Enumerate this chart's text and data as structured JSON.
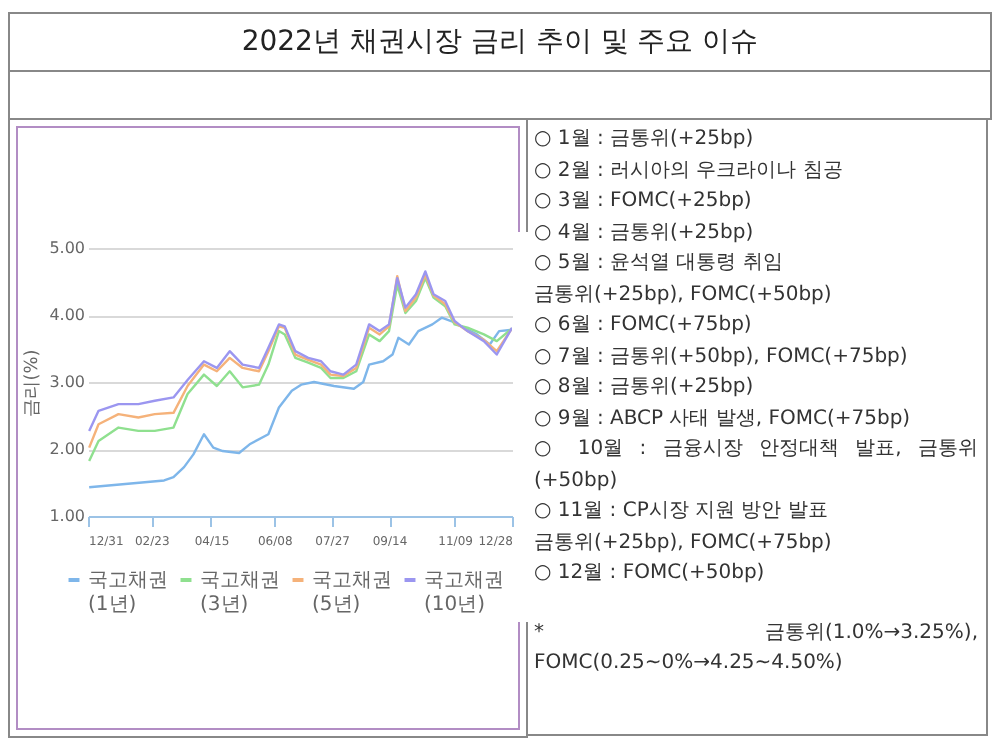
{
  "chart_data": {
    "type": "line",
    "title": "2022년 채권시장 금리 추이 및 주요 이슈",
    "ylabel": "금리(%)",
    "x": [
      "2022-01-01",
      "2022-01-09",
      "2022-01-26",
      "2022-02-12",
      "2022-02-26",
      "2022-03-14",
      "2022-03-26",
      "2022-04-09",
      "2022-04-20",
      "2022-05-01",
      "2022-05-12",
      "2022-05-26",
      "2022-06-03",
      "2022-06-12",
      "2022-06-17",
      "2022-06-26",
      "2022-07-07",
      "2022-07-18",
      "2022-07-26",
      "2022-08-06",
      "2022-08-17",
      "2022-08-28",
      "2022-09-06",
      "2022-09-14",
      "2022-09-21",
      "2022-09-28",
      "2022-10-07",
      "2022-10-15",
      "2022-10-22",
      "2022-11-01",
      "2022-11-09",
      "2022-11-20",
      "2022-12-04",
      "2022-12-15",
      "2022-12-28"
    ],
    "series": [
      {
        "name": "국고채권(1년)",
        "color": "#7eb6ea",
        "x": [
          "2022-01-01",
          "2022-03-06",
          "2022-03-14",
          "2022-03-23",
          "2022-03-31",
          "2022-04-09",
          "2022-04-17",
          "2022-04-25",
          "2022-05-09",
          "2022-05-18",
          "2022-06-03",
          "2022-06-12",
          "2022-06-23",
          "2022-07-01",
          "2022-07-12",
          "2022-07-29",
          "2022-08-15",
          "2022-08-23",
          "2022-08-28",
          "2022-09-09",
          "2022-09-17",
          "2022-09-22",
          "2022-10-01",
          "2022-10-09",
          "2022-10-21",
          "2022-10-29",
          "2022-11-06",
          "2022-11-17",
          "2022-11-28",
          "2022-12-09",
          "2022-12-17",
          "2022-12-28"
        ],
        "values": [
          1.43,
          1.53,
          1.58,
          1.73,
          1.92,
          2.22,
          2.02,
          1.97,
          1.94,
          2.07,
          2.22,
          2.62,
          2.87,
          2.96,
          3.0,
          2.94,
          2.9,
          3.0,
          3.26,
          3.31,
          3.41,
          3.66,
          3.56,
          3.76,
          3.86,
          3.96,
          3.91,
          3.81,
          3.71,
          3.56,
          3.76,
          3.78
        ]
      },
      {
        "name": "국고채권(3년)",
        "color": "#8fe08f",
        "values": [
          1.82,
          2.12,
          2.32,
          2.27,
          2.27,
          2.32,
          2.82,
          3.11,
          2.94,
          3.16,
          2.92,
          2.96,
          3.26,
          3.76,
          3.71,
          3.36,
          3.29,
          3.21,
          3.06,
          3.06,
          3.16,
          3.71,
          3.61,
          3.76,
          4.45,
          4.03,
          4.21,
          4.55,
          4.26,
          4.13,
          3.86,
          3.81,
          3.71,
          3.61,
          3.8
        ]
      },
      {
        "name": "국고채권(5년)",
        "color": "#f5b27a",
        "values": [
          2.02,
          2.37,
          2.52,
          2.47,
          2.52,
          2.54,
          2.94,
          3.26,
          3.16,
          3.36,
          3.21,
          3.16,
          3.46,
          3.83,
          3.81,
          3.41,
          3.33,
          3.26,
          3.11,
          3.09,
          3.21,
          3.81,
          3.71,
          3.83,
          4.58,
          4.06,
          4.26,
          4.6,
          4.29,
          4.16,
          3.89,
          3.76,
          3.63,
          3.46,
          3.8
        ]
      },
      {
        "name": "국고채권(10년)",
        "color": "#9b96f0",
        "values": [
          2.27,
          2.57,
          2.67,
          2.67,
          2.72,
          2.77,
          3.03,
          3.31,
          3.21,
          3.46,
          3.26,
          3.21,
          3.51,
          3.86,
          3.83,
          3.46,
          3.36,
          3.31,
          3.16,
          3.11,
          3.26,
          3.86,
          3.76,
          3.86,
          4.55,
          4.11,
          4.31,
          4.65,
          4.31,
          4.21,
          3.91,
          3.76,
          3.61,
          3.41,
          3.81
        ]
      }
    ],
    "xlim": [
      "2021-12-31",
      "2022-12-28"
    ],
    "xticks": [
      {
        "value": "2021-12-31",
        "label": "12/31"
      },
      {
        "value": "2022-02-23",
        "label": "02/23"
      },
      {
        "value": "2022-04-15",
        "label": "04/15"
      },
      {
        "value": "2022-06-08",
        "label": "06/08"
      },
      {
        "value": "2022-07-27",
        "label": "07/27"
      },
      {
        "value": "2022-09-14",
        "label": "09/14"
      },
      {
        "value": "2022-11-09",
        "label": "11/09"
      },
      {
        "value": "2022-12-28",
        "label": "12/28"
      }
    ],
    "ylim": [
      1,
      5
    ],
    "yticks": [
      {
        "value": 1,
        "label": "1.00"
      },
      {
        "value": 2,
        "label": "2.00"
      },
      {
        "value": 3,
        "label": "3.00"
      },
      {
        "value": 4,
        "label": "4.00"
      },
      {
        "value": 5,
        "label": "5.00"
      }
    ],
    "grid": "y",
    "legend": "bottom",
    "annotations": [
      "○ 1월 : 금통위(+25bp)",
      "○ 2월 : 러시아의 우크라이나 침공",
      "○ 3월 : FOMC(+25bp)",
      "○ 4월 : 금통위(+25bp)",
      "○ 5월 : 윤석열 대통령 취임",
      "금통위(+25bp), FOMC(+50bp)",
      "○ 6월 : FOMC(+75bp)",
      "○ 7월 : 금통위(+50bp), FOMC(+75bp)",
      "○ 8월 : 금통위(+25bp)",
      "○ 9월 : ABCP 사태 발생, FOMC(+75bp)",
      "○ 10월 : 금융시장 안정대책 발표, 금통위(+50bp)",
      "○ 11월 : CP시장 지원 방안 발표",
      "금통위(+25bp), FOMC(+75bp)",
      "○ 12월 : FOMC(+50bp)",
      "* 금통위(1.0%→3.25%), FOMC(0.25~0%→4.25~4.50%)"
    ]
  }
}
